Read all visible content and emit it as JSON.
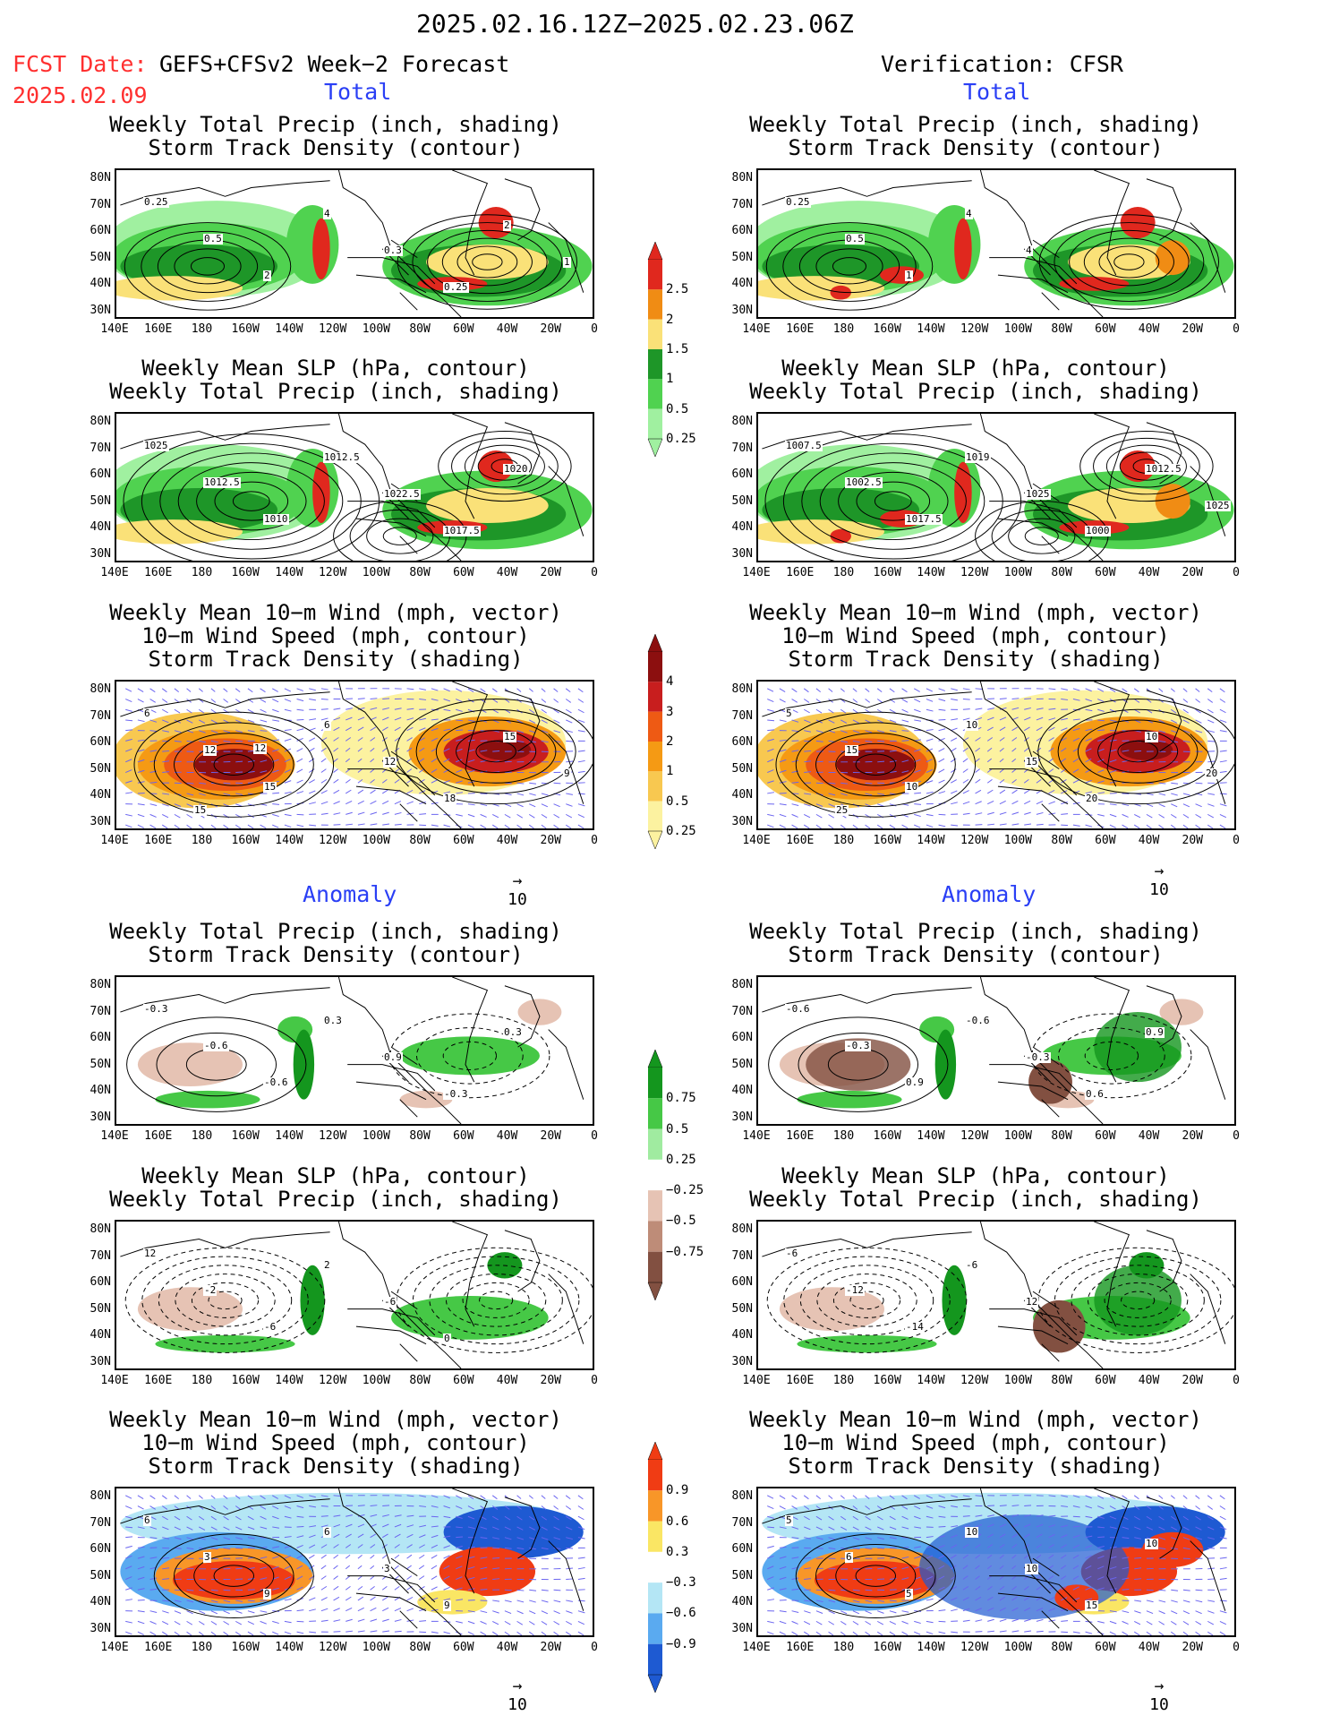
{
  "header": {
    "period": "2025.02.16.12Z−2025.02.23.06Z",
    "fcst_label": "FCST Date:",
    "model": "GEFS+CFSv2 Week−2 Forecast",
    "fcst_date": "2025.02.09",
    "verification": "Verification: CFSR"
  },
  "sections": {
    "total": "Total",
    "anomaly": "Anomaly"
  },
  "titles": {
    "precip_storm": [
      "Weekly Total Precip (inch, shading)",
      "Storm Track Density (contour)"
    ],
    "slp_precip": [
      "Weekly Mean SLP (hPa, contour)",
      "Weekly Total Precip (inch, shading)"
    ],
    "wind_storm": [
      "Weekly Mean 10−m Wind (mph, vector)",
      "10−m Wind Speed (mph, contour)",
      "Storm Track Density (shading)"
    ]
  },
  "axes": {
    "lat": [
      "80N",
      "70N",
      "60N",
      "50N",
      "40N",
      "30N"
    ],
    "lon": [
      "140E",
      "160E",
      "180",
      "160W",
      "140W",
      "120W",
      "100W",
      "80W",
      "60W",
      "40W",
      "20W",
      "0"
    ]
  },
  "vector_ref": "10",
  "colorbars": {
    "precip": {
      "labels": [
        "2.5",
        "2",
        "1.5",
        "1",
        "0.5",
        "0.25"
      ],
      "colors": [
        "#e0281e",
        "#f08c14",
        "#fae178",
        "#1e9628",
        "#50d250",
        "#a0f0a0"
      ]
    },
    "storm": {
      "labels": [
        "4",
        "3",
        "2",
        "1",
        "0.5",
        "0.25"
      ],
      "colors": [
        "#8c0f0f",
        "#c81e1e",
        "#ee5a14",
        "#f59a14",
        "#f8c850",
        "#fcf2a0"
      ]
    },
    "precip_anom": {
      "labels": [
        "0.75",
        "0.5",
        "0.25",
        "−0.25",
        "−0.5",
        "−0.75"
      ],
      "colors": [
        "#14961e",
        "#46c846",
        "#a0eba0",
        "#ffffff",
        "#e6c3b4",
        "#be8c78",
        "#825041"
      ]
    },
    "storm_anom": {
      "labels": [
        "0.9",
        "0.6",
        "0.3",
        "−0.3",
        "−0.6",
        "−0.9"
      ],
      "colors": [
        "#f03c14",
        "#f89628",
        "#fae664",
        "#ffffff",
        "#b4e6f5",
        "#5aaaf0",
        "#1e5ad2"
      ]
    }
  },
  "contour_labels": {
    "p1": [
      "0.25",
      "0.5",
      "2",
      "4",
      "0.3",
      "0.25",
      "2",
      "1"
    ],
    "p2": [
      "0.25",
      "0.5",
      "1",
      "4",
      "4"
    ],
    "p3": [
      "1025",
      "1012.5",
      "1010",
      "1012.5",
      "1022.5",
      "1017.5",
      "1020"
    ],
    "p4": [
      "1007.5",
      "1002.5",
      "1017.5",
      "1019",
      "1025",
      "1000",
      "1012.5",
      "1025"
    ],
    "p5": [
      "6",
      "12",
      "15",
      "6",
      "12",
      "18",
      "15",
      "9",
      "15",
      "12"
    ],
    "p6": [
      "5",
      "15",
      "10",
      "10",
      "15",
      "20",
      "10",
      "20",
      "25"
    ],
    "p7": [
      "-0.3",
      "-0.6",
      "-0.6",
      "0.3",
      "0.9",
      "-0.3",
      "0.3"
    ],
    "p8": [
      "-0.6",
      "-0.3",
      "0.9",
      "-0.6",
      "-0.3",
      "0.6",
      "0.9"
    ],
    "p9": [
      "12",
      "-2",
      "-6",
      "2",
      "-6",
      "0"
    ],
    "p10": [
      "-6",
      "-12",
      "-14",
      "-6",
      "12"
    ],
    "p11": [
      "6",
      "3",
      "9",
      "6",
      "3",
      "9"
    ],
    "p12": [
      "5",
      "6",
      "5",
      "10",
      "10",
      "15",
      "10"
    ]
  }
}
